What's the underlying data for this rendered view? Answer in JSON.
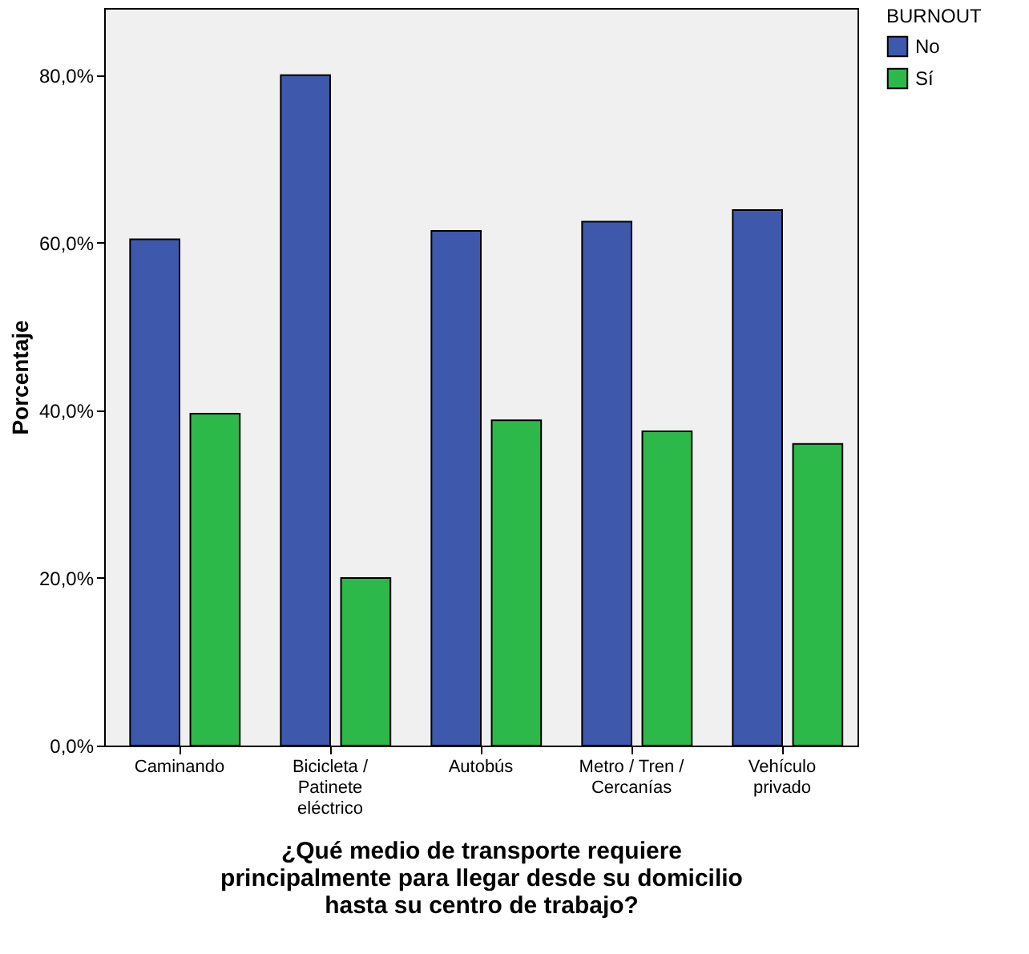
{
  "chart_data": {
    "type": "bar",
    "categories": [
      "Caminando",
      "Bicicleta / Patinete eléctrico",
      "Autobús",
      "Metro / Tren / Cercanías",
      "Vehículo privado"
    ],
    "series": [
      {
        "name": "No",
        "color": "#3e58ac",
        "values": [
          60.4,
          80.0,
          61.4,
          62.5,
          63.9
        ]
      },
      {
        "name": "Sí",
        "color": "#2db84a",
        "values": [
          39.6,
          20.0,
          38.8,
          37.5,
          36.0
        ]
      }
    ],
    "xlabel": "¿Qué medio de transporte requiere principalmente para llegar desde su domicilio hasta su centro de trabajo?",
    "ylabel": "Porcentaje",
    "legend_title": "BURNOUT",
    "legend": "top right",
    "ylim": [
      0,
      88
    ],
    "yticks": [
      {
        "value": 0,
        "label": "0,0%"
      },
      {
        "value": 20,
        "label": "20,0%"
      },
      {
        "value": 40,
        "label": "40,0%"
      },
      {
        "value": 60,
        "label": "60,0%"
      },
      {
        "value": 80,
        "label": "80,0%"
      }
    ],
    "grid": false
  }
}
